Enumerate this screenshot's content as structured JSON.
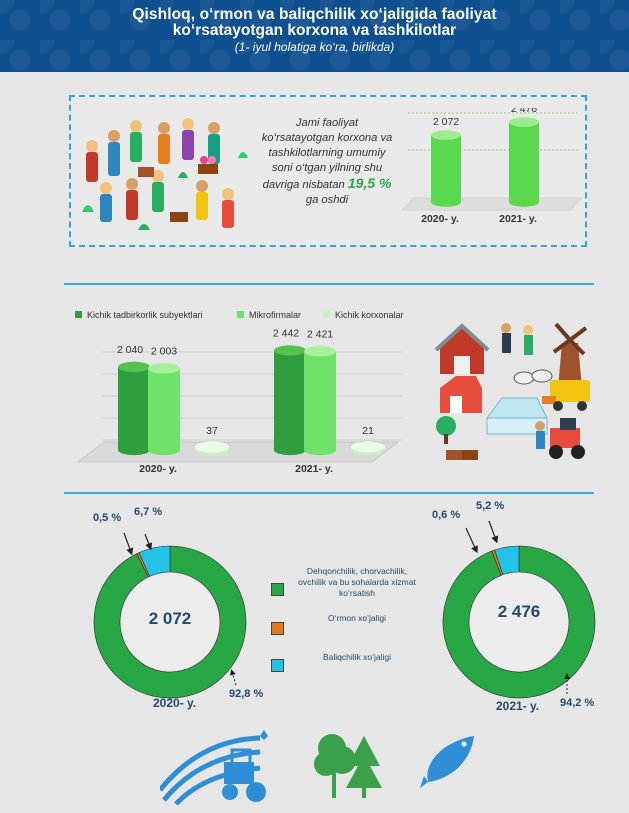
{
  "header": {
    "line1": "Qishloq, o‘rmon va baliqchilik xo‘jaligida faoliyat",
    "line2": "ko‘rsatayotgan korxona va tashkilotlar",
    "line3": "(1- iyul holatiga ko‘ra, birlikda)"
  },
  "summary": {
    "text_before": "Jami faoliyat ko‘rsatayotgan korxona va tashkilotlarning umumiy soni o‘tgan yilning shu davriga nisbatan",
    "percent": "19,5 %",
    "text_after": "ga oshdi"
  },
  "colors": {
    "header_bg": "#0e4f8f",
    "green": "#27a844",
    "light_green": "#6fe26a",
    "cyan": "#23c3e8",
    "orange": "#e07b1d",
    "accent_blue": "#3fa9d6"
  },
  "chart_data": [
    {
      "type": "bar",
      "categories": [
        "2020- y.",
        "2021- y."
      ],
      "values": [
        2072,
        2476
      ],
      "value_labels": [
        "2 072",
        "2 476"
      ]
    },
    {
      "type": "bar",
      "categories": [
        "2020- y.",
        "2021- y."
      ],
      "series": [
        {
          "name": "Kichik tadbirkorlik subyektlari",
          "values": [
            2040,
            2442
          ],
          "labels": [
            "2 040",
            "2 442"
          ],
          "color": "#2e9e3f"
        },
        {
          "name": "Mikrofirmalar",
          "values": [
            2003,
            2421
          ],
          "labels": [
            "2 003",
            "2 421"
          ],
          "color": "#6fe26a"
        },
        {
          "name": "Kichik korxonalar",
          "values": [
            37,
            21
          ],
          "labels": [
            "37",
            "21"
          ],
          "color": "#c5f0c2"
        }
      ]
    },
    {
      "type": "pie",
      "year": "2020- y.",
      "total": "2 072",
      "slices": [
        {
          "name": "Dehqonchilik, chorvachilik, ovchilik va bu sohalarda xizmat ko‘rsatish",
          "value": 92.8,
          "label": "92,8 %"
        },
        {
          "name": "O‘rmon xo‘jaligi",
          "value": 0.5,
          "label": "0,5 %"
        },
        {
          "name": "Baliqchilik xo‘jaligi",
          "value": 6.7,
          "label": "6,7 %"
        }
      ]
    },
    {
      "type": "pie",
      "year": "2021- y.",
      "total": "2 476",
      "slices": [
        {
          "name": "Dehqonchilik, chorvachilik, ovchilik va bu sohalarda xizmat ko‘rsatish",
          "value": 94.2,
          "label": "94,2 %"
        },
        {
          "name": "O‘rmon xo‘jaligi",
          "value": 0.6,
          "label": "0,6 %"
        },
        {
          "name": "Baliqchilik xo‘jaligi",
          "value": 5.2,
          "label": "5,2 %"
        }
      ]
    }
  ],
  "legend": {
    "agri": "Dehqonchilik, chorvachilik, ovchilik va bu sohalarda xizmat ko‘rsatish",
    "forest": "O‘rmon xo‘jaligi",
    "fish": "Baliqchilik xo‘jaligi"
  }
}
